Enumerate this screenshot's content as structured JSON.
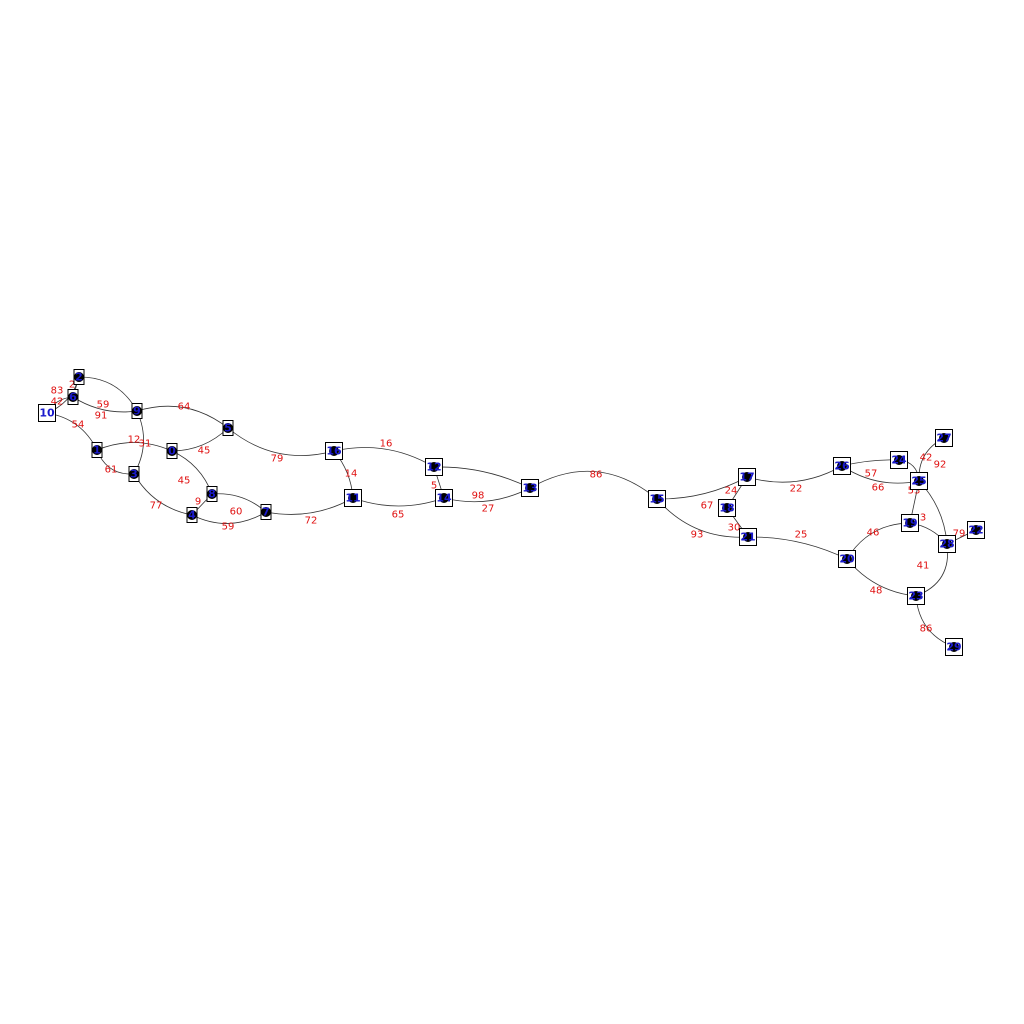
{
  "colors": {
    "edge": "#333333",
    "edge_label": "#e01010",
    "node_label": "#1a1acc",
    "node_dot": "#000000",
    "node_box": "#000000"
  },
  "nodes": [
    {
      "id": "2"
    },
    {
      "id": "6"
    },
    {
      "id": "10"
    },
    {
      "id": "9"
    },
    {
      "id": "5"
    },
    {
      "id": "1"
    },
    {
      "id": "0"
    },
    {
      "id": "3"
    },
    {
      "id": "8"
    },
    {
      "id": "4"
    },
    {
      "id": "7"
    },
    {
      "id": "16"
    },
    {
      "id": "11"
    },
    {
      "id": "12"
    },
    {
      "id": "14"
    },
    {
      "id": "13"
    },
    {
      "id": "15"
    },
    {
      "id": "17"
    },
    {
      "id": "18"
    },
    {
      "id": "21"
    },
    {
      "id": "20"
    },
    {
      "id": "26"
    },
    {
      "id": "24"
    },
    {
      "id": "27"
    },
    {
      "id": "25"
    },
    {
      "id": "19"
    },
    {
      "id": "22"
    },
    {
      "id": "23"
    },
    {
      "id": "28"
    },
    {
      "id": "29"
    }
  ],
  "edges": [
    {
      "source": "2",
      "target": "10",
      "label": "83"
    },
    {
      "source": "2",
      "target": "6",
      "label": "2"
    },
    {
      "source": "2",
      "target": "9",
      "label": "59"
    },
    {
      "source": "6",
      "target": "10",
      "label": "42"
    },
    {
      "source": "6",
      "target": "9",
      "label": "91"
    },
    {
      "source": "10",
      "target": "1",
      "label": "54"
    },
    {
      "source": "9",
      "target": "5",
      "label": "64"
    },
    {
      "source": "9",
      "target": "3",
      "label": "31"
    },
    {
      "source": "1",
      "target": "0",
      "label": "12"
    },
    {
      "source": "1",
      "target": "3",
      "label": "61"
    },
    {
      "source": "0",
      "target": "5",
      "label": "45"
    },
    {
      "source": "0",
      "target": "8",
      "label": "45"
    },
    {
      "source": "3",
      "target": "4",
      "label": "77"
    },
    {
      "source": "8",
      "target": "4",
      "label": "9"
    },
    {
      "source": "8",
      "target": "7",
      "label": "60"
    },
    {
      "source": "4",
      "target": "7",
      "label": "59"
    },
    {
      "source": "5",
      "target": "16",
      "label": "79"
    },
    {
      "source": "7",
      "target": "11",
      "label": "72"
    },
    {
      "source": "16",
      "target": "12",
      "label": "16"
    },
    {
      "source": "16",
      "target": "11",
      "label": "14"
    },
    {
      "source": "11",
      "target": "14",
      "label": "65"
    },
    {
      "source": "12",
      "target": "14",
      "label": "5"
    },
    {
      "source": "12",
      "target": "13",
      "label": "98"
    },
    {
      "source": "14",
      "target": "13",
      "label": "27"
    },
    {
      "source": "13",
      "target": "15",
      "label": "86"
    },
    {
      "source": "15",
      "target": "17",
      "label": "67"
    },
    {
      "source": "15",
      "target": "21",
      "label": "93"
    },
    {
      "source": "17",
      "target": "18",
      "label": "24"
    },
    {
      "source": "18",
      "target": "21",
      "label": "30"
    },
    {
      "source": "17",
      "target": "26",
      "label": "22"
    },
    {
      "source": "21",
      "target": "20",
      "label": "25"
    },
    {
      "source": "26",
      "target": "24",
      "label": "57"
    },
    {
      "source": "26",
      "target": "25",
      "label": "66"
    },
    {
      "source": "24",
      "target": "25",
      "label": "42"
    },
    {
      "source": "27",
      "target": "25",
      "label": "92"
    },
    {
      "source": "25",
      "target": "28",
      "label": "53"
    },
    {
      "source": "25",
      "target": "19",
      "label": ""
    },
    {
      "source": "19",
      "target": "28",
      "label": "3"
    },
    {
      "source": "28",
      "target": "22",
      "label": "79"
    },
    {
      "source": "20",
      "target": "19",
      "label": "46"
    },
    {
      "source": "20",
      "target": "23",
      "label": "48"
    },
    {
      "source": "28",
      "target": "23",
      "label": "41"
    },
    {
      "source": "23",
      "target": "29",
      "label": "86"
    }
  ]
}
